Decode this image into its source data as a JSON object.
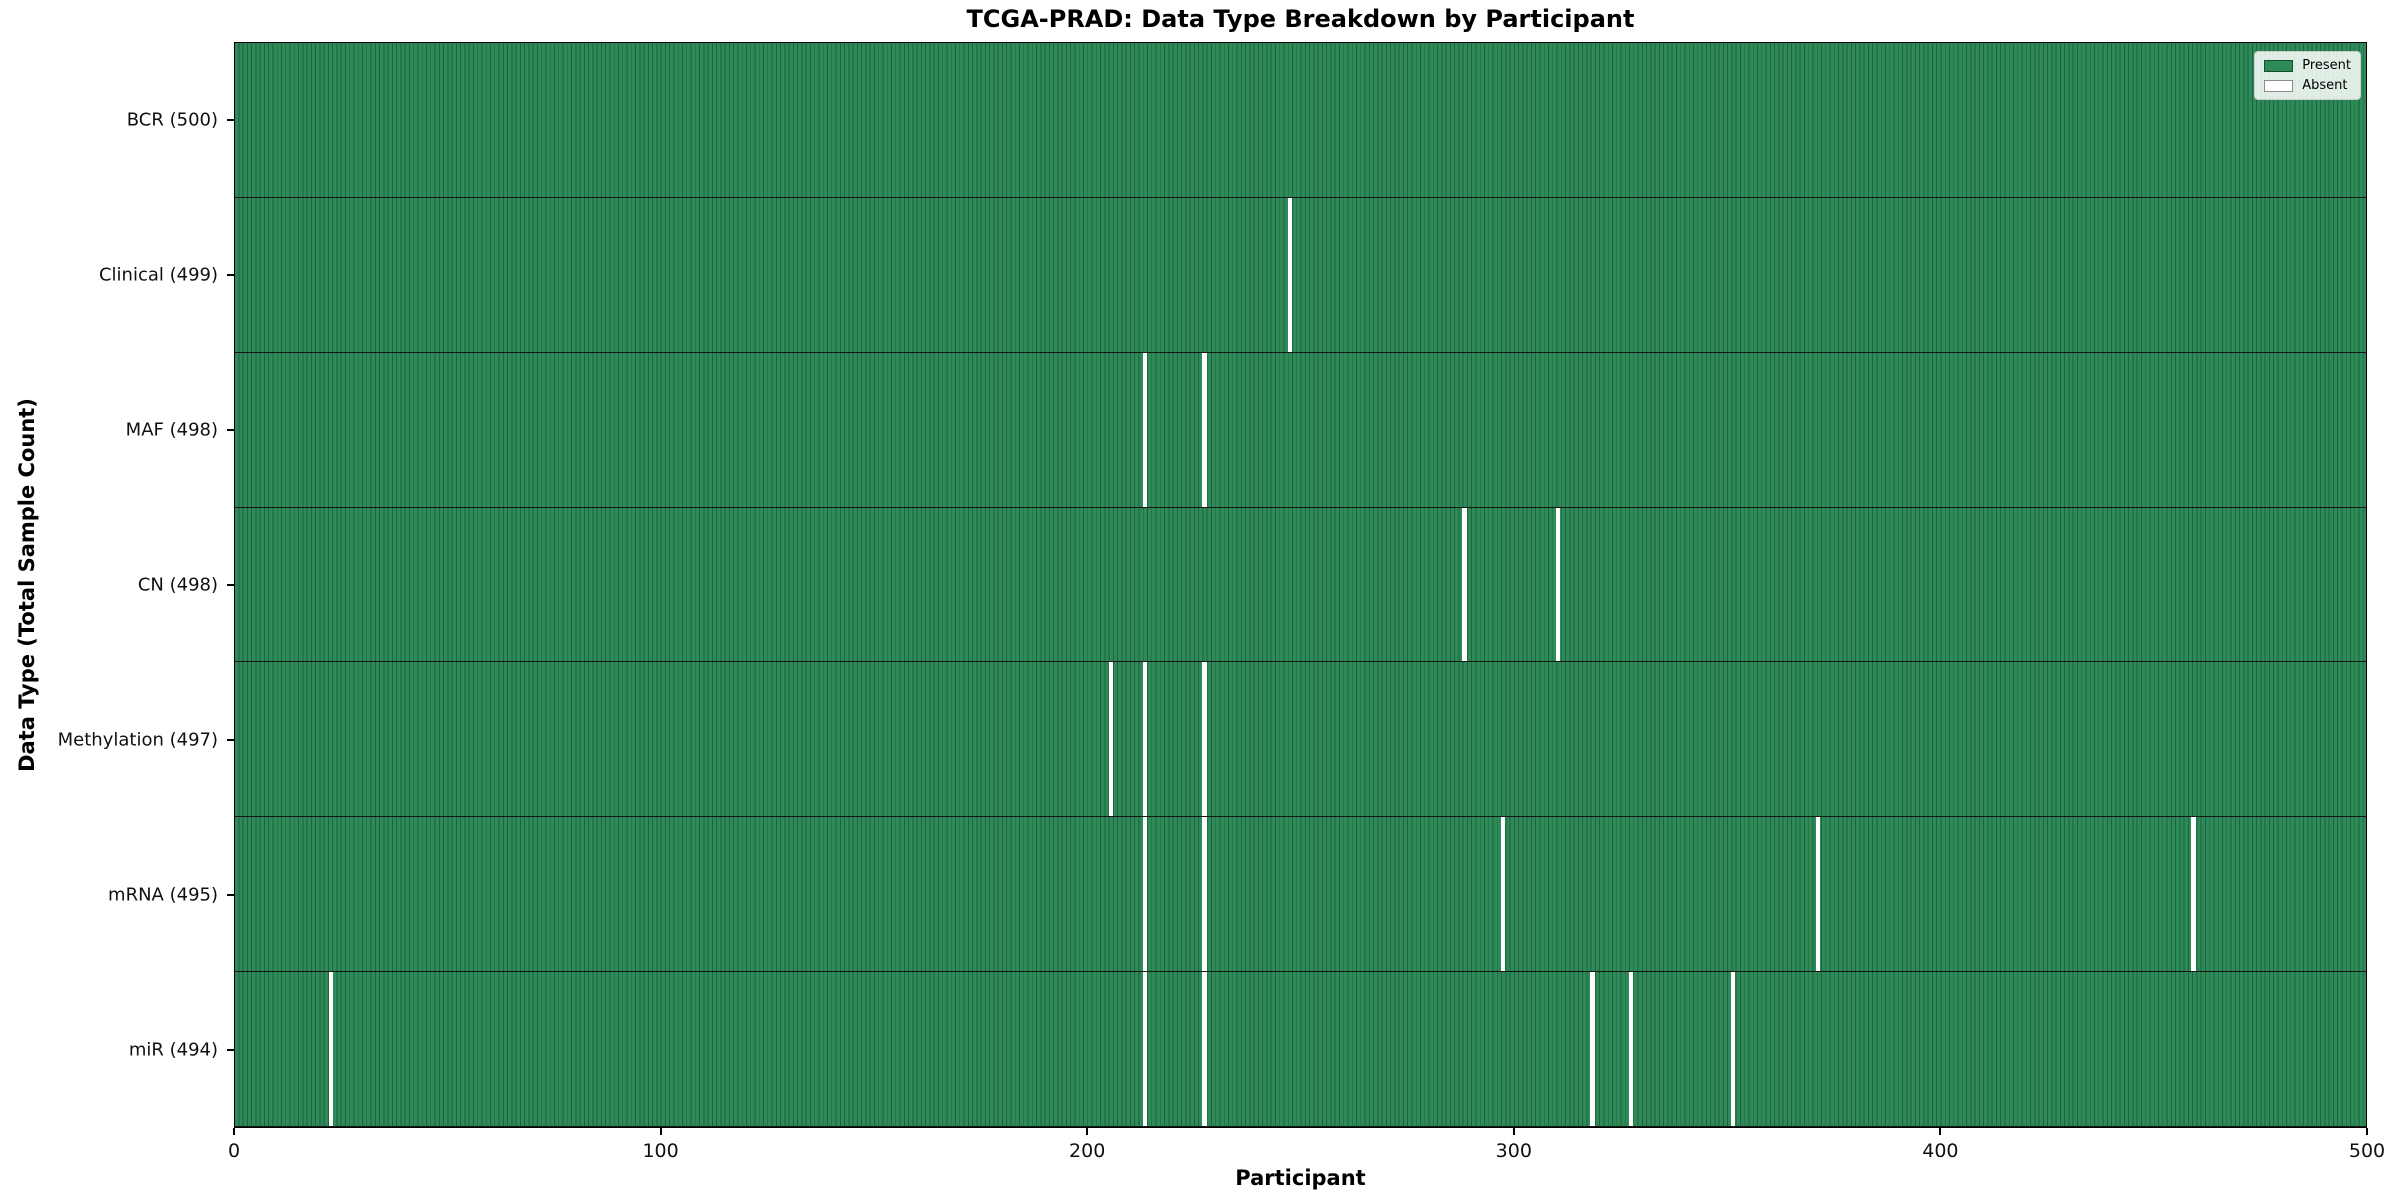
{
  "chart_data": {
    "type": "heatmap",
    "title": "TCGA-PRAD: Data Type Breakdown by Participant",
    "xlabel": "Participant",
    "ylabel": "Data Type (Total Sample Count)",
    "x_range": [
      0,
      500
    ],
    "x_ticks": [
      0,
      100,
      200,
      300,
      400,
      500
    ],
    "n_participants": 500,
    "grid": false,
    "legend": {
      "position": "upper right",
      "entries": [
        {
          "label": "Present",
          "color": "#2e8b57"
        },
        {
          "label": "Absent",
          "color": "#ffffff"
        }
      ]
    },
    "rows": [
      {
        "label": "BCR (500)",
        "data_type": "BCR",
        "total": 500,
        "absent_participants": []
      },
      {
        "label": "Clinical (499)",
        "data_type": "Clinical",
        "total": 499,
        "absent_participants": [
          247
        ]
      },
      {
        "label": "MAF (498)",
        "data_type": "MAF",
        "total": 498,
        "absent_participants": [
          213,
          227
        ]
      },
      {
        "label": "CN (498)",
        "data_type": "CN",
        "total": 498,
        "absent_participants": [
          288,
          310
        ]
      },
      {
        "label": "Methylation (497)",
        "data_type": "Methylation",
        "total": 497,
        "absent_participants": [
          205,
          213,
          227
        ]
      },
      {
        "label": "mRNA (495)",
        "data_type": "mRNA",
        "total": 495,
        "absent_participants": [
          213,
          227,
          297,
          371,
          459
        ]
      },
      {
        "label": "miR (494)",
        "data_type": "miR",
        "total": 494,
        "absent_participants": [
          22,
          213,
          227,
          318,
          327,
          351
        ]
      }
    ],
    "colors": {
      "present": "#2e8b57",
      "present_edge": "#1f6143",
      "absent": "#ffffff",
      "row_separator": "#161616",
      "spine": "#000000"
    }
  }
}
